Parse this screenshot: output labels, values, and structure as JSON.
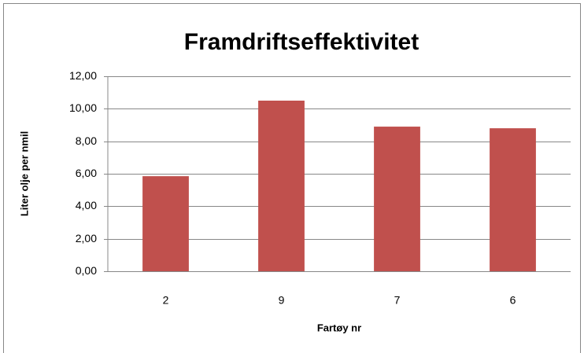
{
  "chart_data": {
    "type": "bar",
    "title": "Framdriftseffektivitet",
    "x_label": "Fartøy nr",
    "y_label": "Liter olje per nmil",
    "categories": [
      "2",
      "9",
      "7",
      "6"
    ],
    "values": [
      5.85,
      10.5,
      8.9,
      8.8
    ],
    "color": "#c0504d",
    "ylim": [
      0,
      12
    ],
    "yticks": [
      {
        "value": 0,
        "label": "0,00"
      },
      {
        "value": 2,
        "label": "2,00"
      },
      {
        "value": 4,
        "label": "4,00"
      },
      {
        "value": 6,
        "label": "6,00"
      },
      {
        "value": 8,
        "label": "8,00"
      },
      {
        "value": 10,
        "label": "10,00"
      },
      {
        "value": 12,
        "label": "12,00"
      }
    ],
    "grid": true
  }
}
